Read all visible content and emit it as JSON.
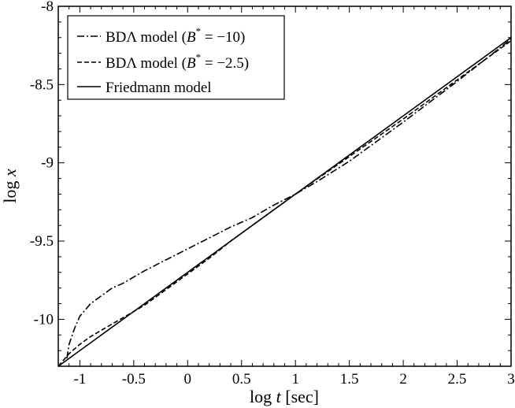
{
  "chart_data": {
    "type": "line",
    "xlabel_pre": "log ",
    "xlabel_var": "t",
    "xlabel_post": " [sec]",
    "ylabel_pre": "log ",
    "ylabel_var": "x",
    "xlim": [
      -1.2,
      3
    ],
    "ylim": [
      -10.3,
      -8
    ],
    "xticks": [
      {
        "v": -1,
        "label": "-1"
      },
      {
        "v": -0.5,
        "label": "-0.5"
      },
      {
        "v": 0,
        "label": "0"
      },
      {
        "v": 0.5,
        "label": "0.5"
      },
      {
        "v": 1,
        "label": "1"
      },
      {
        "v": 1.5,
        "label": "1.5"
      },
      {
        "v": 2,
        "label": "2"
      },
      {
        "v": 2.5,
        "label": "2.5"
      },
      {
        "v": 3,
        "label": "3"
      }
    ],
    "yticks": [
      {
        "v": -8,
        "label": "-8"
      },
      {
        "v": -8.5,
        "label": "-8.5"
      },
      {
        "v": -9,
        "label": "-9"
      },
      {
        "v": -9.5,
        "label": "-9.5"
      },
      {
        "v": -10,
        "label": "-10"
      }
    ],
    "grid": false,
    "legend_position": "top-left",
    "series": [
      {
        "name": "BDΛ model (B* = −10)",
        "legend_main": "BDΛ model (",
        "legend_var": "B",
        "legend_sup": "*",
        "legend_rest": " = −10)",
        "dash": "dashdot",
        "color": "#000000",
        "x": [
          -1.12,
          -1.1,
          -1.05,
          -1.0,
          -0.9,
          -0.8,
          -0.7,
          -0.6,
          -0.5,
          -0.4,
          -0.2,
          0.0,
          0.2,
          0.4,
          0.6,
          0.8,
          1.0,
          1.2,
          1.5,
          2.0,
          2.5,
          3.0
        ],
        "y": [
          -10.25,
          -10.16,
          -10.06,
          -9.98,
          -9.9,
          -9.85,
          -9.8,
          -9.77,
          -9.73,
          -9.69,
          -9.62,
          -9.55,
          -9.48,
          -9.41,
          -9.35,
          -9.27,
          -9.2,
          -9.12,
          -8.99,
          -8.74,
          -8.48,
          -8.21
        ]
      },
      {
        "name": "BDΛ model (B* = −2.5)",
        "legend_main": "BDΛ model (",
        "legend_var": "B",
        "legend_sup": "*",
        "legend_rest": " = −2.5)",
        "dash": "dashed",
        "color": "#000000",
        "x": [
          -1.2,
          -1.1,
          -1.0,
          -0.9,
          -0.8,
          -0.7,
          -0.6,
          -0.5,
          -0.4,
          -0.2,
          0.0,
          0.2,
          0.4,
          0.6,
          0.8,
          1.0,
          1.5,
          2.0,
          2.5,
          3.0
        ],
        "y": [
          -10.3,
          -10.22,
          -10.16,
          -10.11,
          -10.07,
          -10.03,
          -9.99,
          -9.95,
          -9.91,
          -9.81,
          -9.71,
          -9.61,
          -9.5,
          -9.4,
          -9.3,
          -9.2,
          -8.96,
          -8.72,
          -8.47,
          -8.22
        ]
      },
      {
        "name": "Friedmann model",
        "legend_main": "Friedmann model",
        "dash": "solid",
        "color": "#000000",
        "x": [
          -1.2,
          3.0
        ],
        "y": [
          -10.3,
          -8.2
        ]
      }
    ]
  }
}
